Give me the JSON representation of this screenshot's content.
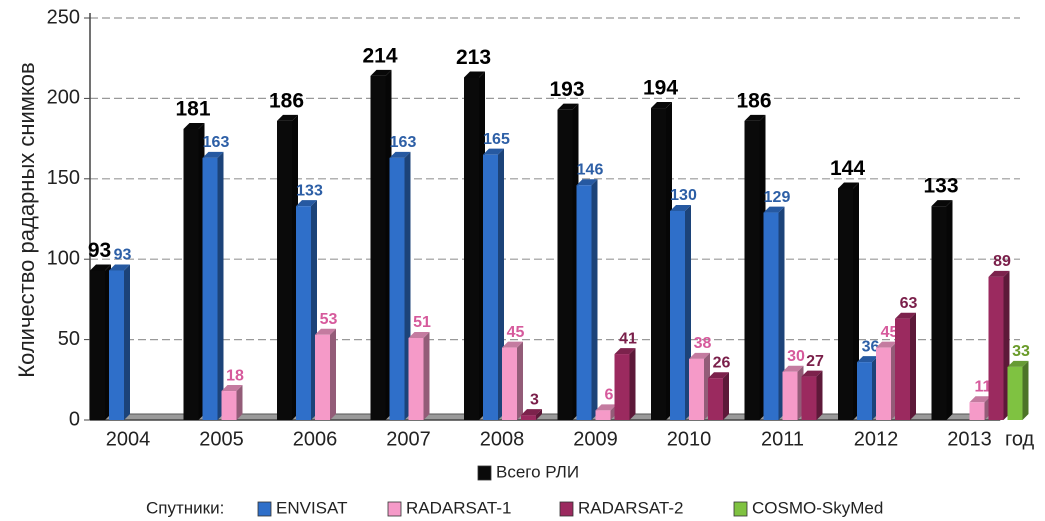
{
  "chart_data": {
    "type": "bar",
    "y_label": "Количество радарных снимков",
    "x_unit": "год",
    "legend_prefix": "Спутники:",
    "categories": [
      "2004",
      "2005",
      "2006",
      "2007",
      "2008",
      "2009",
      "2010",
      "2011",
      "2012",
      "2013"
    ],
    "series": [
      {
        "name": "Всего РЛИ",
        "color": "#0a0a0a",
        "label_color": "#000000",
        "values": [
          93,
          181,
          186,
          214,
          213,
          193,
          194,
          186,
          144,
          133
        ]
      },
      {
        "name": "ENVISAT",
        "color": "#2f6fc9",
        "label_color": "#2d5fa6",
        "values": [
          93,
          163,
          133,
          163,
          165,
          146,
          130,
          129,
          36,
          null
        ]
      },
      {
        "name": "RADARSAT-1",
        "color": "#f59ac8",
        "label_color": "#d65a9c",
        "values": [
          null,
          18,
          53,
          51,
          45,
          6,
          38,
          30,
          45,
          11
        ]
      },
      {
        "name": "RADARSAT-2",
        "color": "#9b2a5f",
        "label_color": "#7a1f4a",
        "values": [
          null,
          null,
          null,
          null,
          3,
          41,
          26,
          27,
          63,
          89
        ]
      },
      {
        "name": "COSMO-SkyMed",
        "color": "#7fc241",
        "label_color": "#6a9b2a",
        "values": [
          null,
          null,
          null,
          null,
          null,
          null,
          null,
          null,
          null,
          33
        ]
      }
    ],
    "ylim": [
      0,
      250
    ],
    "yticks": [
      0,
      50,
      100,
      150,
      200,
      250
    ],
    "grid": true
  }
}
